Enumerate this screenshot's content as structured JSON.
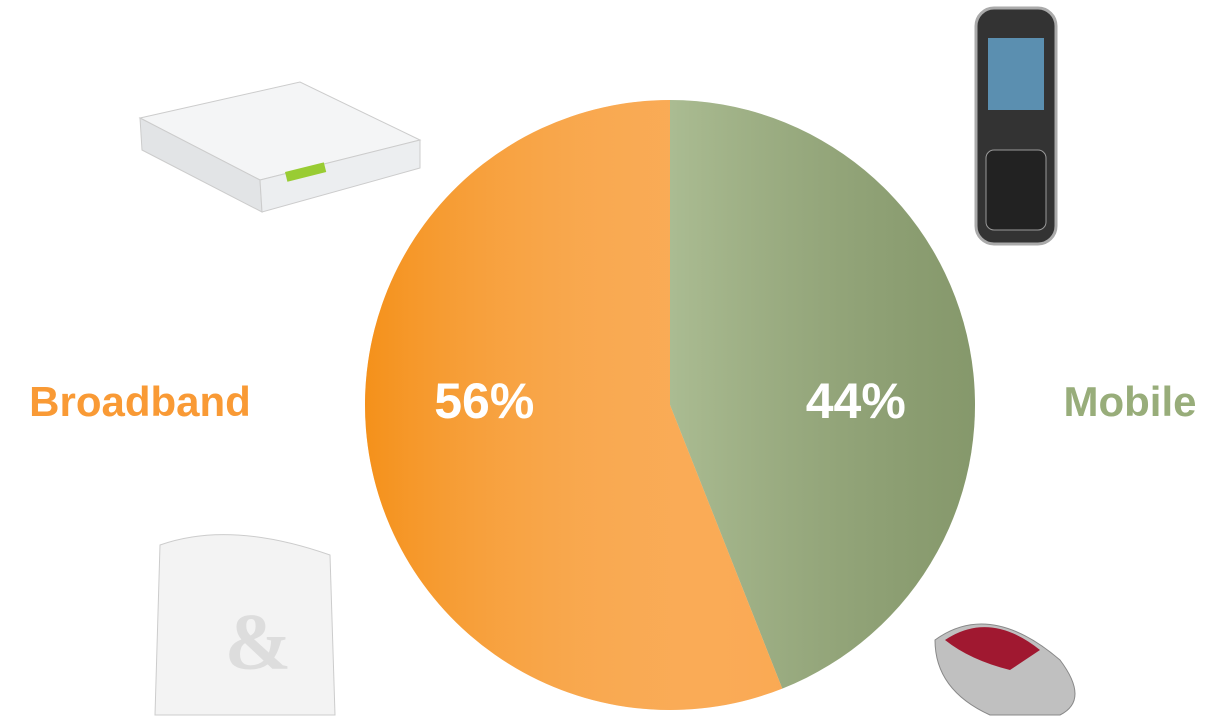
{
  "chart_data": {
    "type": "pie",
    "categories": [
      "Mobile",
      "Broadband"
    ],
    "values": [
      44,
      56
    ],
    "value_labels": [
      "44%",
      "56%"
    ],
    "colors": [
      "#98ad7a",
      "#f99a35"
    ]
  }
}
